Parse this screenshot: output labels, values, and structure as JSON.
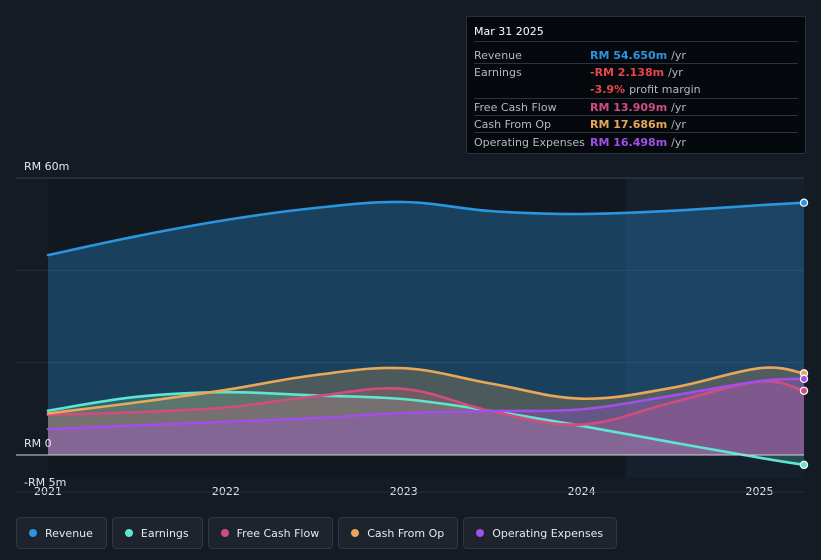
{
  "tooltip": {
    "date": "Mar 31 2025",
    "rows": [
      {
        "label": "Revenue",
        "value": "RM 54.650m",
        "unit": "/yr",
        "color": "#2b95e0"
      },
      {
        "label": "Earnings",
        "value": "-RM 2.138m",
        "unit": "/yr",
        "color": "#e8474a"
      },
      {
        "label": "",
        "value": "-3.9%",
        "unit": "profit margin",
        "color": "#e8474a"
      },
      {
        "label": "Free Cash Flow",
        "value": "RM 13.909m",
        "unit": "/yr",
        "color": "#d14d7e"
      },
      {
        "label": "Cash From Op",
        "value": "RM 17.686m",
        "unit": "/yr",
        "color": "#e8a858"
      },
      {
        "label": "Operating Expenses",
        "value": "RM 16.498m",
        "unit": "/yr",
        "color": "#a24ee8"
      }
    ]
  },
  "legend": [
    {
      "label": "Revenue",
      "color": "#2b95e0"
    },
    {
      "label": "Earnings",
      "color": "#5ee6d2"
    },
    {
      "label": "Free Cash Flow",
      "color": "#d14d7e"
    },
    {
      "label": "Cash From Op",
      "color": "#e8a858"
    },
    {
      "label": "Operating Expenses",
      "color": "#a24ee8"
    }
  ],
  "chart_data": {
    "type": "area",
    "y_tick_labels": [
      "RM 60m",
      "RM 0",
      "-RM 5m"
    ],
    "ylim": [
      -5,
      60
    ],
    "xlim": [
      2021.0,
      2025.25
    ],
    "x_tick_labels": [
      "2021",
      "2022",
      "2023",
      "2024",
      "2025"
    ],
    "x_ticks": [
      2021,
      2022,
      2023,
      2024,
      2025
    ],
    "highlight_start": 2024.25,
    "series": [
      {
        "name": "Revenue",
        "color": "#2b95e0",
        "x": [
          2021.0,
          2021.5,
          2022.0,
          2022.5,
          2023.0,
          2023.5,
          2024.0,
          2024.5,
          2025.0,
          2025.25
        ],
        "values": [
          43.3,
          47.4,
          50.9,
          53.5,
          54.8,
          52.8,
          52.2,
          52.9,
          54.1,
          54.65
        ]
      },
      {
        "name": "Earnings",
        "color": "#5ee6d2",
        "x": [
          2021.0,
          2021.5,
          2022.0,
          2022.5,
          2023.0,
          2023.5,
          2024.0,
          2024.5,
          2025.0,
          2025.25
        ],
        "values": [
          9.6,
          12.6,
          13.6,
          12.9,
          12.1,
          9.5,
          6.3,
          2.8,
          -0.6,
          -2.14
        ]
      },
      {
        "name": "Free Cash Flow",
        "color": "#d14d7e",
        "x": [
          2021.0,
          2021.5,
          2022.0,
          2022.5,
          2023.0,
          2023.5,
          2024.0,
          2024.5,
          2025.0,
          2025.25
        ],
        "values": [
          8.7,
          9.3,
          10.3,
          12.7,
          14.3,
          9.4,
          6.6,
          11.3,
          15.9,
          13.91
        ]
      },
      {
        "name": "Cash From Op",
        "color": "#e8a858",
        "x": [
          2021.0,
          2021.5,
          2022.0,
          2022.5,
          2023.0,
          2023.5,
          2024.0,
          2024.5,
          2025.0,
          2025.25
        ],
        "values": [
          9.0,
          11.4,
          14.1,
          17.3,
          18.8,
          15.4,
          12.2,
          14.5,
          18.8,
          17.69
        ]
      },
      {
        "name": "Operating Expenses",
        "color": "#a24ee8",
        "x": [
          2021.0,
          2021.5,
          2022.0,
          2022.5,
          2023.0,
          2023.5,
          2024.0,
          2024.5,
          2025.0,
          2025.25
        ],
        "values": [
          5.6,
          6.4,
          7.2,
          8.0,
          9.1,
          9.5,
          9.9,
          12.8,
          16.0,
          16.5
        ]
      }
    ]
  }
}
